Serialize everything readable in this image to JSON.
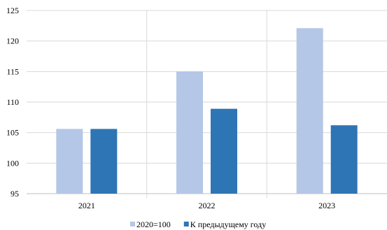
{
  "chart_data": {
    "type": "bar",
    "title": "",
    "xlabel": "",
    "ylabel": "",
    "categories": [
      "2021",
      "2022",
      "2023"
    ],
    "series": [
      {
        "name": "2020=100",
        "values": [
          105.6,
          115.0,
          122.1
        ],
        "color": "#b4c7e7"
      },
      {
        "name": "К предыдущему году",
        "values": [
          105.6,
          108.9,
          106.2
        ],
        "color": "#2e75b6"
      }
    ],
    "ylim": [
      95,
      125
    ],
    "yticks": [
      95,
      100,
      105,
      110,
      115,
      120,
      125
    ],
    "grid": {
      "horizontal": true,
      "vertical_category_separators": true
    },
    "legend_position": "bottom",
    "colors": {
      "gridline": "#d9d9d9",
      "axis": "#bfbfbf"
    }
  }
}
